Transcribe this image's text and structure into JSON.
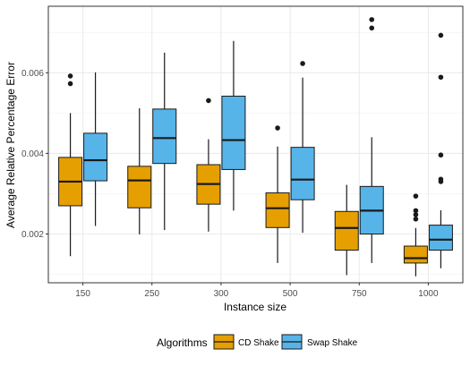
{
  "chart_data": {
    "type": "boxplot",
    "xlabel": "Instance size",
    "ylabel": "Average Relative Percentage Error",
    "categories": [
      "150",
      "250",
      "300",
      "500",
      "750",
      "1000"
    ],
    "y_ticks": [
      0.002,
      0.004,
      0.006
    ],
    "y_tick_labels": [
      "0.002",
      "0.004",
      "0.006"
    ],
    "ylim": [
      0.00079,
      0.00765
    ],
    "grid": true,
    "legend": {
      "title": "Algorithms",
      "position": "bottom"
    },
    "series": [
      {
        "name": "CD Shake",
        "color": "#E69F00",
        "boxes": [
          {
            "category": "150",
            "whisker_low": 0.00145,
            "q1": 0.0027,
            "median": 0.0033,
            "q3": 0.0039,
            "whisker_high": 0.005,
            "outliers": [
              0.00592,
              0.00573
            ]
          },
          {
            "category": "250",
            "whisker_low": 0.00199,
            "q1": 0.00265,
            "median": 0.00333,
            "q3": 0.00368,
            "whisker_high": 0.00512,
            "outliers": []
          },
          {
            "category": "300",
            "whisker_low": 0.00206,
            "q1": 0.00274,
            "median": 0.00324,
            "q3": 0.00372,
            "whisker_high": 0.00435,
            "outliers": [
              0.00531
            ]
          },
          {
            "category": "500",
            "whisker_low": 0.00128,
            "q1": 0.00216,
            "median": 0.00264,
            "q3": 0.00302,
            "whisker_high": 0.00417,
            "outliers": [
              0.00463
            ]
          },
          {
            "category": "750",
            "whisker_low": 0.00098,
            "q1": 0.0016,
            "median": 0.00215,
            "q3": 0.00256,
            "whisker_high": 0.00322,
            "outliers": []
          },
          {
            "category": "1000",
            "whisker_low": 0.00095,
            "q1": 0.00128,
            "median": 0.0014,
            "q3": 0.0017,
            "whisker_high": 0.00215,
            "outliers": [
              0.00294,
              0.00258,
              0.00248,
              0.00237
            ]
          }
        ]
      },
      {
        "name": "Swap Shake",
        "color": "#56B4E9",
        "boxes": [
          {
            "category": "150",
            "whisker_low": 0.0022,
            "q1": 0.00332,
            "median": 0.00383,
            "q3": 0.0045,
            "whisker_high": 0.00601,
            "outliers": []
          },
          {
            "category": "250",
            "whisker_low": 0.0021,
            "q1": 0.00375,
            "median": 0.00438,
            "q3": 0.0051,
            "whisker_high": 0.0065,
            "outliers": []
          },
          {
            "category": "300",
            "whisker_low": 0.00258,
            "q1": 0.0036,
            "median": 0.00433,
            "q3": 0.00542,
            "whisker_high": 0.00679,
            "outliers": []
          },
          {
            "category": "500",
            "whisker_low": 0.00203,
            "q1": 0.00285,
            "median": 0.00335,
            "q3": 0.00415,
            "whisker_high": 0.00588,
            "outliers": [
              0.00623
            ]
          },
          {
            "category": "750",
            "whisker_low": 0.00128,
            "q1": 0.002,
            "median": 0.00258,
            "q3": 0.00318,
            "whisker_high": 0.0044,
            "outliers": [
              0.00732,
              0.00711
            ]
          },
          {
            "category": "1000",
            "whisker_low": 0.00115,
            "q1": 0.0016,
            "median": 0.00186,
            "q3": 0.00222,
            "whisker_high": 0.00259,
            "outliers": [
              0.00693,
              0.00589,
              0.00396,
              0.00336,
              0.0033
            ]
          }
        ]
      }
    ]
  }
}
